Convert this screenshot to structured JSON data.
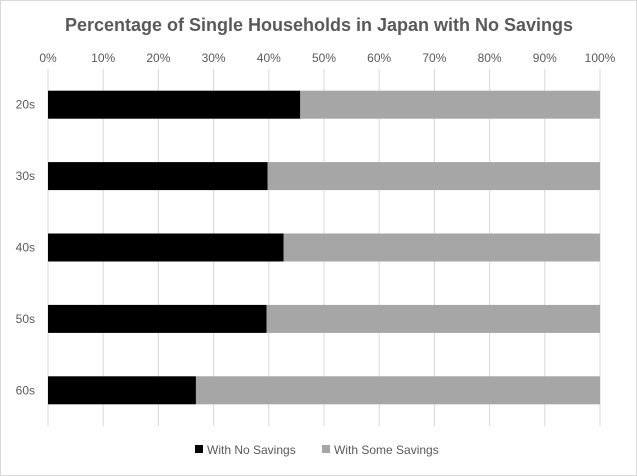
{
  "chart_data": {
    "type": "bar",
    "orientation": "horizontal",
    "stacked": true,
    "title": "Percentage of Single Households in Japan with No Savings",
    "categories": [
      "20s",
      "30s",
      "40s",
      "50s",
      "60s"
    ],
    "series": [
      {
        "name": "With No Savings",
        "values": [
          45.7,
          39.8,
          42.7,
          39.6,
          26.8
        ],
        "color": "#000000"
      },
      {
        "name": "With Some Savings",
        "values": [
          54.3,
          60.2,
          57.3,
          60.4,
          73.2
        ],
        "color": "#a6a6a6"
      }
    ],
    "xlim": [
      0,
      100
    ],
    "x_ticks": [
      "0%",
      "10%",
      "20%",
      "30%",
      "40%",
      "50%",
      "60%",
      "70%",
      "80%",
      "90%",
      "100%"
    ],
    "x_axis_position": "top",
    "grid": true,
    "legend_position": "bottom"
  }
}
